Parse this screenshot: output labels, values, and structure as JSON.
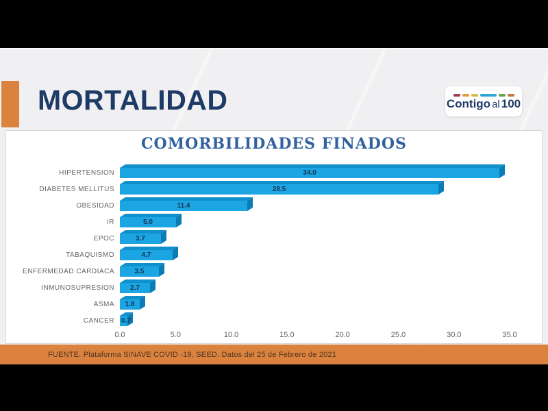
{
  "header": {
    "title": "MORTALIDAD"
  },
  "logo": {
    "prefix": "Contigo",
    "middle": "al",
    "suffix": "100",
    "dash_colors": [
      "#A23C50",
      "#E49A3C",
      "#D8BC42",
      "#2EA6D9",
      "#67A54D",
      "#BD7947"
    ]
  },
  "chart_data": {
    "type": "bar",
    "orientation": "horizontal",
    "style": "3d-excel",
    "title": "COMORBILIDADES FINADOS",
    "categories": [
      "HIPERTENSION",
      "DIABETES MELLITUS",
      "OBESIDAD",
      "IR",
      "EPOC",
      "TABAQUISMO",
      "ENFERMEDAD CARDIACA",
      "INMUNOSUPRESION",
      "ASMA",
      "CANCER"
    ],
    "values": [
      34.0,
      28.5,
      11.4,
      5.0,
      3.7,
      4.7,
      3.5,
      2.7,
      1.8,
      0.7
    ],
    "value_labels": [
      "34.0",
      "28.5",
      "11.4",
      "5.0",
      "3.7",
      "4.7",
      "3.5",
      "2.7",
      "1.8",
      "0.7"
    ],
    "x_ticks": [
      "0.0",
      "5.0",
      "10.0",
      "15.0",
      "20.0",
      "25.0",
      "30.0",
      "35.0"
    ],
    "xlim": [
      0,
      35
    ],
    "grid": false,
    "legend": null,
    "colors": {
      "bar_face": "#1BA6E3",
      "bar_top": "#1191CC",
      "bar_side": "#0C7CB5",
      "value_label": "#16324F",
      "category_label": "#646464",
      "title": "#31629E"
    }
  },
  "footer": {
    "source_text": "FUENTE.  Plataforma SINAVE COVID -19, SEED. Datos del 25 de Febrero de 2021"
  },
  "theme": {
    "frame_bg": "#000000",
    "slide_bg": "#F0F0F2",
    "panel_bg": "#FFFFFF",
    "accent_orange": "#DB823F",
    "header_text": "#1E3A66",
    "logo_text": "#1F3A67"
  }
}
